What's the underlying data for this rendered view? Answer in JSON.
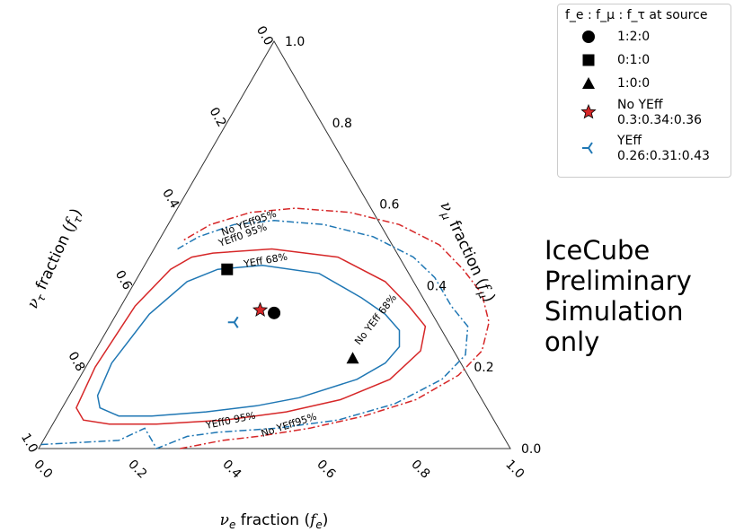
{
  "chart_data": {
    "type": "ternary",
    "axes": {
      "bottom": {
        "label": "ν_e fraction (f_e)",
        "ticks": [
          "0.0",
          "0.2",
          "0.4",
          "0.6",
          "0.8",
          "1.0"
        ]
      },
      "right": {
        "label": "ν_μ fraction (f_μ)",
        "ticks": [
          "0.0",
          "0.2",
          "0.4",
          "0.6",
          "0.8",
          "1.0"
        ]
      },
      "left": {
        "label": "ν_τ fraction (f_τ)",
        "ticks": [
          "0.0",
          "0.2",
          "0.4",
          "0.6",
          "0.8",
          "1.0"
        ]
      }
    },
    "legend": {
      "title": "f_e : f_μ : f_τ at source",
      "placement": "top-right",
      "entries": [
        {
          "label": "1:2:0",
          "marker": "circle",
          "color": "#000000"
        },
        {
          "label": "0:1:0",
          "marker": "square",
          "color": "#000000"
        },
        {
          "label": "1:0:0",
          "marker": "triangle",
          "color": "#000000"
        },
        {
          "label": "No YEff\n0.3:0.34:0.36",
          "marker": "star",
          "color": "#d62728"
        },
        {
          "label": "YEff\n0.26:0.31:0.43",
          "marker": "tri-left",
          "color": "#1f77b4"
        }
      ]
    },
    "points": [
      {
        "name": "1:2:0",
        "fe": 0.333,
        "fmu": 0.333,
        "marker": "circle",
        "color": "#000000"
      },
      {
        "name": "0:1:0",
        "fe": 0.18,
        "fmu": 0.44,
        "marker": "square",
        "color": "#000000"
      },
      {
        "name": "1:0:0",
        "fe": 0.555,
        "fmu": 0.222,
        "marker": "triangle",
        "color": "#000000"
      },
      {
        "name": "No YEff",
        "fe": 0.3,
        "fmu": 0.34,
        "marker": "star",
        "color": "#d62728"
      },
      {
        "name": "YEff",
        "fe": 0.26,
        "fmu": 0.31,
        "marker": "tri-left",
        "color": "#1f77b4"
      }
    ],
    "contours": [
      {
        "label": "YEff 68%",
        "color": "#1f77b4",
        "style": "solid",
        "points": [
          [
            0.16,
            0.44
          ],
          [
            0.25,
            0.45
          ],
          [
            0.38,
            0.43
          ],
          [
            0.5,
            0.37
          ],
          [
            0.57,
            0.33
          ],
          [
            0.62,
            0.29
          ],
          [
            0.64,
            0.25
          ],
          [
            0.63,
            0.21
          ],
          [
            0.59,
            0.17
          ],
          [
            0.49,
            0.125
          ],
          [
            0.41,
            0.105
          ],
          [
            0.31,
            0.09
          ],
          [
            0.2,
            0.08
          ],
          [
            0.13,
            0.08
          ],
          [
            0.08,
            0.1
          ],
          [
            0.06,
            0.13
          ],
          [
            0.05,
            0.21
          ],
          [
            0.07,
            0.33
          ],
          [
            0.11,
            0.41
          ]
        ]
      },
      {
        "label": "No YEff 68%",
        "color": "#d62728",
        "style": "solid",
        "points": [
          [
            0.13,
            0.48
          ],
          [
            0.25,
            0.49
          ],
          [
            0.4,
            0.47
          ],
          [
            0.53,
            0.41
          ],
          [
            0.61,
            0.35
          ],
          [
            0.67,
            0.3
          ],
          [
            0.69,
            0.24
          ],
          [
            0.66,
            0.17
          ],
          [
            0.58,
            0.12
          ],
          [
            0.48,
            0.09
          ],
          [
            0.36,
            0.07
          ],
          [
            0.22,
            0.06
          ],
          [
            0.12,
            0.06
          ],
          [
            0.06,
            0.07
          ],
          [
            0.03,
            0.1
          ],
          [
            0.02,
            0.2
          ],
          [
            0.03,
            0.35
          ],
          [
            0.06,
            0.44
          ],
          [
            0.09,
            0.47
          ]
        ]
      },
      {
        "label": "YEff 95%",
        "color": "#1f77b4",
        "style": "dashdot",
        "points": [
          [
            0.0,
            0.01
          ],
          [
            0.08,
            0.015
          ],
          [
            0.16,
            0.02
          ],
          [
            0.2,
            0.05
          ],
          [
            0.25,
            0.0
          ],
          [
            0.3,
            0.03
          ],
          [
            0.36,
            0.04
          ],
          [
            0.48,
            0.05
          ],
          [
            0.6,
            0.07
          ],
          [
            0.7,
            0.11
          ],
          [
            0.77,
            0.17
          ],
          [
            0.79,
            0.23
          ],
          [
            0.76,
            0.3
          ],
          [
            0.7,
            0.35
          ],
          [
            0.63,
            0.42
          ],
          [
            0.56,
            0.47
          ],
          [
            0.45,
            0.52
          ],
          [
            0.33,
            0.55
          ],
          [
            0.22,
            0.56
          ],
          [
            0.14,
            0.55
          ],
          [
            0.08,
            0.52
          ],
          [
            0.05,
            0.49
          ]
        ]
      },
      {
        "label": "No YEff 95%",
        "color": "#d62728",
        "style": "dashdot",
        "points": [
          [
            0.3,
            0.0
          ],
          [
            0.38,
            0.02
          ],
          [
            0.45,
            0.03
          ],
          [
            0.55,
            0.05
          ],
          [
            0.65,
            0.08
          ],
          [
            0.74,
            0.12
          ],
          [
            0.8,
            0.18
          ],
          [
            0.82,
            0.24
          ],
          [
            0.8,
            0.31
          ],
          [
            0.75,
            0.38
          ],
          [
            0.68,
            0.44
          ],
          [
            0.6,
            0.5
          ],
          [
            0.49,
            0.55
          ],
          [
            0.37,
            0.58
          ],
          [
            0.25,
            0.59
          ],
          [
            0.16,
            0.58
          ],
          [
            0.09,
            0.55
          ],
          [
            0.05,
            0.51
          ]
        ]
      }
    ],
    "contour_labels": [
      "YEff 68%",
      "No YEff 68%",
      "YEff0 95%",
      "No YEff95%",
      "YEff0 95%",
      "No YEff95%"
    ]
  },
  "annotation": "IceCube\nPreliminary\nSimulation\nonly"
}
